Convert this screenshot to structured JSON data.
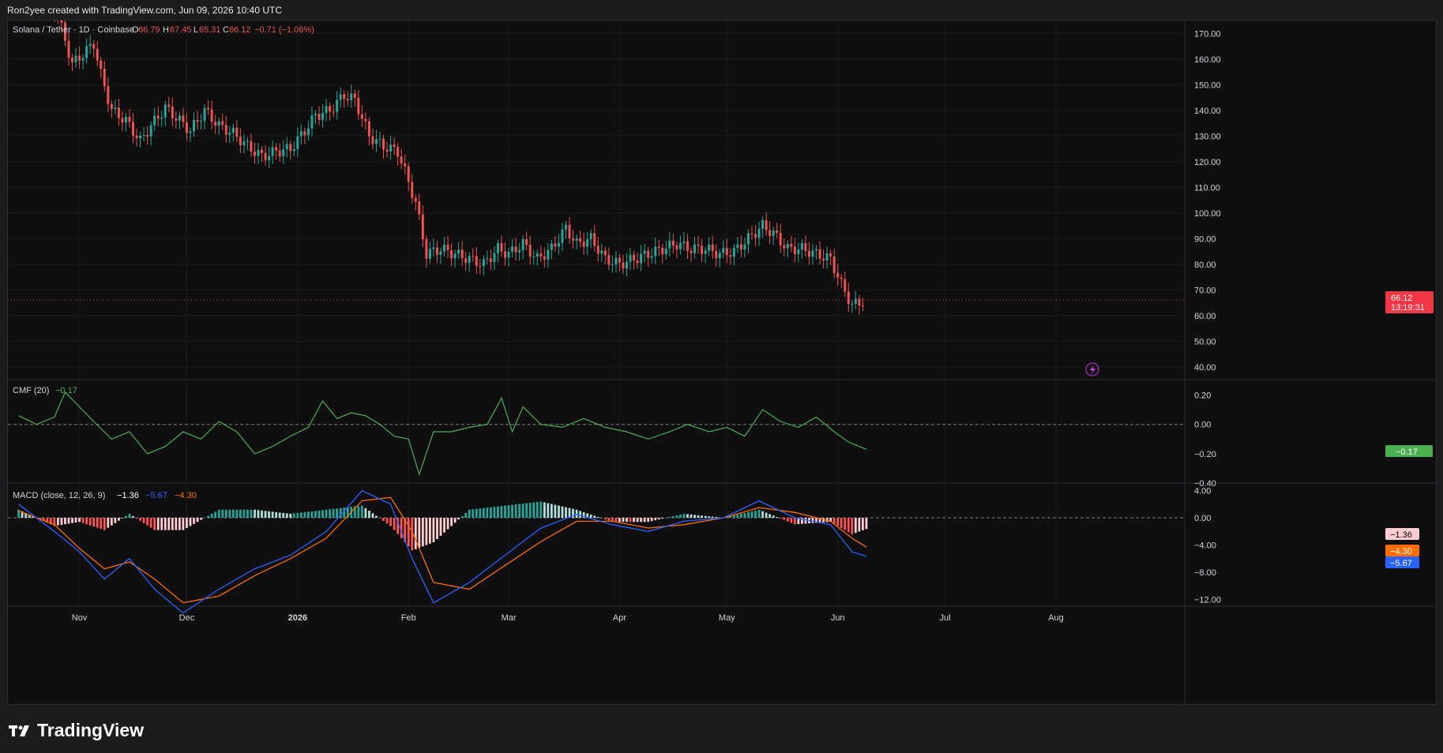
{
  "header": {
    "credit": "Ron2yee created with TradingView.com, Jun 09, 2026 10:40 UTC"
  },
  "legend": {
    "symbol": "Solana / Tether · 1D · Coinbase",
    "o_label": "O",
    "o": "66.79",
    "h_label": "H",
    "h": "67.45",
    "l_label": "L",
    "l": "65.31",
    "c_label": "C",
    "c": "66.12",
    "change": "−0.71 (−1.06%)"
  },
  "price_tag": {
    "value": "66.12",
    "countdown": "13:19:31"
  },
  "cmf": {
    "label": "CMF (20)",
    "value": "−0.17",
    "tag": "−0.17"
  },
  "macd": {
    "label": "MACD (close, 12, 26, 9)",
    "hist": "−1.36",
    "macd": "−5.67",
    "signal": "−4.30",
    "tag_hist": "−1.36",
    "tag_signal": "−4.30",
    "tag_macd": "−5.67"
  },
  "footer": {
    "brand": "TradingView"
  },
  "colors": {
    "up": "#26a69a",
    "down": "#ef5350",
    "cmf": "#4caf50",
    "macd_line": "#2962ff",
    "signal_line": "#ff6d00",
    "tag_red": "#f23645"
  },
  "chart_data": [
    {
      "type": "candlestick",
      "title": "Solana / Tether · 1D · Coinbase",
      "x_ticks": [
        "Nov",
        "Dec",
        "2026",
        "Feb",
        "Mar",
        "Apr",
        "May",
        "Jun",
        "Jul",
        "Aug"
      ],
      "y_ticks": [
        "170.00",
        "160.00",
        "150.00",
        "140.00",
        "130.00",
        "120.00",
        "110.00",
        "100.00",
        "90.00",
        "80.00",
        "70.00",
        "60.00",
        "50.00",
        "40.00"
      ],
      "ylim": [
        35,
        175
      ],
      "last_close": 66.12,
      "closes": [
        {
          "date": "2025-10-17",
          "close": 185
        },
        {
          "date": "2025-10-25",
          "close": 180
        },
        {
          "date": "2025-10-27",
          "close": 172
        },
        {
          "date": "2025-10-30",
          "close": 158
        },
        {
          "date": "2025-11-02",
          "close": 162
        },
        {
          "date": "2025-11-05",
          "close": 166
        },
        {
          "date": "2025-11-07",
          "close": 154
        },
        {
          "date": "2025-11-10",
          "close": 140
        },
        {
          "date": "2025-11-14",
          "close": 136
        },
        {
          "date": "2025-11-18",
          "close": 128
        },
        {
          "date": "2025-11-21",
          "close": 134
        },
        {
          "date": "2025-11-25",
          "close": 141
        },
        {
          "date": "2025-11-29",
          "close": 136
        },
        {
          "date": "2025-12-02",
          "close": 132
        },
        {
          "date": "2025-12-06",
          "close": 140
        },
        {
          "date": "2025-12-10",
          "close": 134
        },
        {
          "date": "2025-12-14",
          "close": 131
        },
        {
          "date": "2025-12-18",
          "close": 126
        },
        {
          "date": "2025-12-22",
          "close": 122
        },
        {
          "date": "2025-12-26",
          "close": 124
        },
        {
          "date": "2025-12-30",
          "close": 125
        },
        {
          "date": "2026-01-03",
          "close": 132
        },
        {
          "date": "2026-01-06",
          "close": 138
        },
        {
          "date": "2026-01-10",
          "close": 140
        },
        {
          "date": "2026-01-14",
          "close": 146
        },
        {
          "date": "2026-01-17",
          "close": 144
        },
        {
          "date": "2026-01-21",
          "close": 130
        },
        {
          "date": "2026-01-25",
          "close": 126
        },
        {
          "date": "2026-01-29",
          "close": 124
        },
        {
          "date": "2026-02-01",
          "close": 112
        },
        {
          "date": "2026-02-03",
          "close": 104
        },
        {
          "date": "2026-02-06",
          "close": 84
        },
        {
          "date": "2026-02-10",
          "close": 86
        },
        {
          "date": "2026-02-14",
          "close": 84
        },
        {
          "date": "2026-02-18",
          "close": 82
        },
        {
          "date": "2026-02-22",
          "close": 80
        },
        {
          "date": "2026-02-26",
          "close": 86
        },
        {
          "date": "2026-03-01",
          "close": 84
        },
        {
          "date": "2026-03-05",
          "close": 88
        },
        {
          "date": "2026-03-09",
          "close": 82
        },
        {
          "date": "2026-03-13",
          "close": 86
        },
        {
          "date": "2026-03-17",
          "close": 94
        },
        {
          "date": "2026-03-20",
          "close": 88
        },
        {
          "date": "2026-03-24",
          "close": 90
        },
        {
          "date": "2026-03-28",
          "close": 82
        },
        {
          "date": "2026-04-01",
          "close": 80
        },
        {
          "date": "2026-04-05",
          "close": 82
        },
        {
          "date": "2026-04-09",
          "close": 84
        },
        {
          "date": "2026-04-13",
          "close": 86
        },
        {
          "date": "2026-04-17",
          "close": 88
        },
        {
          "date": "2026-04-21",
          "close": 86
        },
        {
          "date": "2026-04-25",
          "close": 86
        },
        {
          "date": "2026-04-29",
          "close": 84
        },
        {
          "date": "2026-05-03",
          "close": 85
        },
        {
          "date": "2026-05-07",
          "close": 90
        },
        {
          "date": "2026-05-11",
          "close": 95
        },
        {
          "date": "2026-05-14",
          "close": 92
        },
        {
          "date": "2026-05-18",
          "close": 86
        },
        {
          "date": "2026-05-22",
          "close": 86
        },
        {
          "date": "2026-05-26",
          "close": 84
        },
        {
          "date": "2026-05-30",
          "close": 82
        },
        {
          "date": "2026-06-02",
          "close": 72
        },
        {
          "date": "2026-06-05",
          "close": 64
        },
        {
          "date": "2026-06-07",
          "close": 65
        },
        {
          "date": "2026-06-09",
          "close": 66.12
        }
      ]
    },
    {
      "type": "line",
      "title": "CMF (20)",
      "y_ticks": [
        "0.20",
        "0.00",
        "−0.20",
        "−0.40"
      ],
      "ylim": [
        -0.4,
        0.3
      ],
      "points": [
        {
          "date": "2025-10-15",
          "cmf": 0.06
        },
        {
          "date": "2025-10-20",
          "cmf": 0.0
        },
        {
          "date": "2025-10-25",
          "cmf": 0.05
        },
        {
          "date": "2025-10-28",
          "cmf": 0.22
        },
        {
          "date": "2025-11-01",
          "cmf": 0.12
        },
        {
          "date": "2025-11-05",
          "cmf": 0.02
        },
        {
          "date": "2025-11-10",
          "cmf": -0.1
        },
        {
          "date": "2025-11-15",
          "cmf": -0.05
        },
        {
          "date": "2025-11-20",
          "cmf": -0.2
        },
        {
          "date": "2025-11-25",
          "cmf": -0.15
        },
        {
          "date": "2025-11-30",
          "cmf": -0.05
        },
        {
          "date": "2025-12-05",
          "cmf": -0.1
        },
        {
          "date": "2025-12-10",
          "cmf": 0.02
        },
        {
          "date": "2025-12-15",
          "cmf": -0.05
        },
        {
          "date": "2025-12-20",
          "cmf": -0.2
        },
        {
          "date": "2025-12-25",
          "cmf": -0.15
        },
        {
          "date": "2025-12-30",
          "cmf": -0.08
        },
        {
          "date": "2026-01-04",
          "cmf": -0.02
        },
        {
          "date": "2026-01-08",
          "cmf": 0.16
        },
        {
          "date": "2026-01-12",
          "cmf": 0.04
        },
        {
          "date": "2026-01-16",
          "cmf": 0.08
        },
        {
          "date": "2026-01-20",
          "cmf": 0.06
        },
        {
          "date": "2026-01-24",
          "cmf": 0.0
        },
        {
          "date": "2026-01-28",
          "cmf": -0.08
        },
        {
          "date": "2026-02-01",
          "cmf": -0.1
        },
        {
          "date": "2026-02-04",
          "cmf": -0.34
        },
        {
          "date": "2026-02-08",
          "cmf": -0.05
        },
        {
          "date": "2026-02-13",
          "cmf": -0.05
        },
        {
          "date": "2026-02-18",
          "cmf": -0.02
        },
        {
          "date": "2026-02-23",
          "cmf": 0.0
        },
        {
          "date": "2026-02-27",
          "cmf": 0.18
        },
        {
          "date": "2026-03-02",
          "cmf": -0.05
        },
        {
          "date": "2026-03-05",
          "cmf": 0.12
        },
        {
          "date": "2026-03-10",
          "cmf": 0.0
        },
        {
          "date": "2026-03-16",
          "cmf": -0.02
        },
        {
          "date": "2026-03-22",
          "cmf": 0.04
        },
        {
          "date": "2026-03-28",
          "cmf": -0.02
        },
        {
          "date": "2026-04-03",
          "cmf": -0.05
        },
        {
          "date": "2026-04-09",
          "cmf": -0.1
        },
        {
          "date": "2026-04-15",
          "cmf": -0.05
        },
        {
          "date": "2026-04-20",
          "cmf": 0.0
        },
        {
          "date": "2026-04-26",
          "cmf": -0.05
        },
        {
          "date": "2026-05-01",
          "cmf": -0.02
        },
        {
          "date": "2026-05-06",
          "cmf": -0.08
        },
        {
          "date": "2026-05-11",
          "cmf": 0.1
        },
        {
          "date": "2026-05-16",
          "cmf": 0.02
        },
        {
          "date": "2026-05-21",
          "cmf": -0.02
        },
        {
          "date": "2026-05-26",
          "cmf": 0.05
        },
        {
          "date": "2026-05-31",
          "cmf": -0.05
        },
        {
          "date": "2026-06-04",
          "cmf": -0.12
        },
        {
          "date": "2026-06-09",
          "cmf": -0.17
        }
      ]
    },
    {
      "type": "line",
      "title": "MACD (close, 12, 26, 9)",
      "y_ticks": [
        "4.00",
        "0.00",
        "−4.00",
        "−8.00",
        "−12.00"
      ],
      "ylim": [
        -13,
        5
      ],
      "series": [
        {
          "name": "MACD",
          "points": [
            {
              "date": "2025-10-15",
              "v": 2.0
            },
            {
              "date": "2025-10-25",
              "v": -2.0
            },
            {
              "date": "2025-11-01",
              "v": -5.0
            },
            {
              "date": "2025-11-08",
              "v": -9.0
            },
            {
              "date": "2025-11-15",
              "v": -6.0
            },
            {
              "date": "2025-11-22",
              "v": -10.5
            },
            {
              "date": "2025-11-30",
              "v": -14.0
            },
            {
              "date": "2025-12-10",
              "v": -10.5
            },
            {
              "date": "2025-12-20",
              "v": -7.5
            },
            {
              "date": "2025-12-30",
              "v": -5.5
            },
            {
              "date": "2026-01-09",
              "v": -2.0
            },
            {
              "date": "2026-01-19",
              "v": 4.0
            },
            {
              "date": "2026-01-27",
              "v": 2.0
            },
            {
              "date": "2026-02-02",
              "v": -6.0
            },
            {
              "date": "2026-02-08",
              "v": -12.5
            },
            {
              "date": "2026-02-18",
              "v": -9.5
            },
            {
              "date": "2026-02-28",
              "v": -5.5
            },
            {
              "date": "2026-03-10",
              "v": -1.5
            },
            {
              "date": "2026-03-20",
              "v": 0.5
            },
            {
              "date": "2026-03-30",
              "v": -1.0
            },
            {
              "date": "2026-04-09",
              "v": -2.0
            },
            {
              "date": "2026-04-19",
              "v": -0.5
            },
            {
              "date": "2026-04-30",
              "v": 0.0
            },
            {
              "date": "2026-05-10",
              "v": 2.5
            },
            {
              "date": "2026-05-20",
              "v": 0.0
            },
            {
              "date": "2026-05-30",
              "v": -1.0
            },
            {
              "date": "2026-06-05",
              "v": -5.0
            },
            {
              "date": "2026-06-09",
              "v": -5.67
            }
          ]
        },
        {
          "name": "Signal",
          "points": [
            {
              "date": "2025-10-15",
              "v": 1.0
            },
            {
              "date": "2025-10-25",
              "v": -1.0
            },
            {
              "date": "2025-11-01",
              "v": -4.5
            },
            {
              "date": "2025-11-08",
              "v": -7.5
            },
            {
              "date": "2025-11-15",
              "v": -6.5
            },
            {
              "date": "2025-11-22",
              "v": -9.0
            },
            {
              "date": "2025-11-30",
              "v": -12.5
            },
            {
              "date": "2025-12-10",
              "v": -11.5
            },
            {
              "date": "2025-12-20",
              "v": -8.5
            },
            {
              "date": "2025-12-30",
              "v": -6.0
            },
            {
              "date": "2026-01-09",
              "v": -3.0
            },
            {
              "date": "2026-01-19",
              "v": 2.5
            },
            {
              "date": "2026-01-27",
              "v": 3.0
            },
            {
              "date": "2026-02-02",
              "v": -2.0
            },
            {
              "date": "2026-02-08",
              "v": -9.5
            },
            {
              "date": "2026-02-18",
              "v": -10.5
            },
            {
              "date": "2026-02-28",
              "v": -7.0
            },
            {
              "date": "2026-03-10",
              "v": -3.5
            },
            {
              "date": "2026-03-20",
              "v": -0.5
            },
            {
              "date": "2026-03-30",
              "v": -0.5
            },
            {
              "date": "2026-04-09",
              "v": -1.5
            },
            {
              "date": "2026-04-19",
              "v": -1.0
            },
            {
              "date": "2026-04-30",
              "v": 0.0
            },
            {
              "date": "2026-05-10",
              "v": 1.5
            },
            {
              "date": "2026-05-20",
              "v": 0.8
            },
            {
              "date": "2026-05-30",
              "v": -0.5
            },
            {
              "date": "2026-06-05",
              "v": -3.0
            },
            {
              "date": "2026-06-09",
              "v": -4.3
            }
          ]
        }
      ]
    }
  ]
}
